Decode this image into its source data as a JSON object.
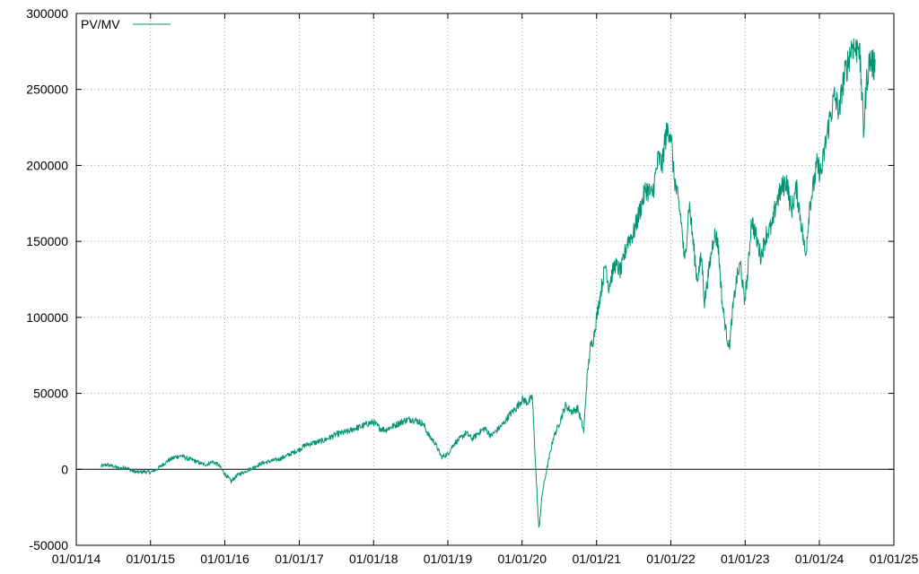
{
  "chart_data": {
    "type": "line",
    "title": "",
    "xlabel": "",
    "ylabel": "",
    "xlim": [
      "01/01/14",
      "01/01/25"
    ],
    "ylim": [
      -50000,
      300000
    ],
    "grid": true,
    "legend_position": "top-left",
    "zero_line": true,
    "x_ticks": [
      "01/01/14",
      "01/01/15",
      "01/01/16",
      "01/01/17",
      "01/01/18",
      "01/01/19",
      "01/01/20",
      "01/01/21",
      "01/01/22",
      "01/01/23",
      "01/01/24",
      "01/01/25"
    ],
    "y_ticks": [
      "-50000",
      "0",
      "50000",
      "100000",
      "150000",
      "200000",
      "250000",
      "300000"
    ],
    "line_color": "#009473",
    "series": [
      {
        "name": "PV/MV",
        "points": [
          [
            "2014-05-01",
            2000
          ],
          [
            "2014-06-01",
            3000
          ],
          [
            "2014-07-01",
            2000
          ],
          [
            "2014-08-01",
            500
          ],
          [
            "2014-09-01",
            1500
          ],
          [
            "2014-10-01",
            -1000
          ],
          [
            "2014-11-01",
            -2000
          ],
          [
            "2014-12-01",
            -1500
          ],
          [
            "2015-01-01",
            -2000
          ],
          [
            "2015-02-01",
            0
          ],
          [
            "2015-03-01",
            3000
          ],
          [
            "2015-04-01",
            6000
          ],
          [
            "2015-05-01",
            8000
          ],
          [
            "2015-06-01",
            9000
          ],
          [
            "2015-07-01",
            7000
          ],
          [
            "2015-08-01",
            6000
          ],
          [
            "2015-09-01",
            4000
          ],
          [
            "2015-10-01",
            3000
          ],
          [
            "2015-11-01",
            5000
          ],
          [
            "2015-12-01",
            3000
          ],
          [
            "2016-01-01",
            -3000
          ],
          [
            "2016-02-01",
            -8000
          ],
          [
            "2016-03-01",
            -4000
          ],
          [
            "2016-04-01",
            -2000
          ],
          [
            "2016-05-01",
            0
          ],
          [
            "2016-06-01",
            2000
          ],
          [
            "2016-07-01",
            4000
          ],
          [
            "2016-08-01",
            5000
          ],
          [
            "2016-09-01",
            6000
          ],
          [
            "2016-10-01",
            7000
          ],
          [
            "2016-11-01",
            9000
          ],
          [
            "2016-12-01",
            11000
          ],
          [
            "2017-01-01",
            13000
          ],
          [
            "2017-02-01",
            16000
          ],
          [
            "2017-03-01",
            17000
          ],
          [
            "2017-04-01",
            18000
          ],
          [
            "2017-05-01",
            19000
          ],
          [
            "2017-06-01",
            21000
          ],
          [
            "2017-07-01",
            23000
          ],
          [
            "2017-08-01",
            24000
          ],
          [
            "2017-09-01",
            25000
          ],
          [
            "2017-10-01",
            27000
          ],
          [
            "2017-11-01",
            28000
          ],
          [
            "2017-12-01",
            30000
          ],
          [
            "2018-01-01",
            31000
          ],
          [
            "2018-02-01",
            27000
          ],
          [
            "2018-03-01",
            26000
          ],
          [
            "2018-04-01",
            28000
          ],
          [
            "2018-05-01",
            30000
          ],
          [
            "2018-06-01",
            32000
          ],
          [
            "2018-07-01",
            33000
          ],
          [
            "2018-08-01",
            32000
          ],
          [
            "2018-09-01",
            30000
          ],
          [
            "2018-10-01",
            22000
          ],
          [
            "2018-11-01",
            17000
          ],
          [
            "2018-12-01",
            8000
          ],
          [
            "2019-01-01",
            10000
          ],
          [
            "2019-02-01",
            17000
          ],
          [
            "2019-03-01",
            20000
          ],
          [
            "2019-04-01",
            24000
          ],
          [
            "2019-05-01",
            20000
          ],
          [
            "2019-06-01",
            24000
          ],
          [
            "2019-07-01",
            27000
          ],
          [
            "2019-08-01",
            22000
          ],
          [
            "2019-09-01",
            26000
          ],
          [
            "2019-10-01",
            30000
          ],
          [
            "2019-11-01",
            36000
          ],
          [
            "2019-12-01",
            40000
          ],
          [
            "2020-01-01",
            46000
          ],
          [
            "2020-02-01",
            44000
          ],
          [
            "2020-02-20",
            48000
          ],
          [
            "2020-03-10",
            -5000
          ],
          [
            "2020-03-23",
            -40000
          ],
          [
            "2020-04-10",
            -15000
          ],
          [
            "2020-05-01",
            0
          ],
          [
            "2020-06-01",
            20000
          ],
          [
            "2020-07-01",
            30000
          ],
          [
            "2020-08-01",
            42000
          ],
          [
            "2020-09-01",
            38000
          ],
          [
            "2020-10-01",
            40000
          ],
          [
            "2020-10-30",
            25000
          ],
          [
            "2020-11-15",
            60000
          ],
          [
            "2020-12-01",
            80000
          ],
          [
            "2020-12-15",
            85000
          ],
          [
            "2021-01-01",
            100000
          ],
          [
            "2021-02-01",
            125000
          ],
          [
            "2021-02-15",
            135000
          ],
          [
            "2021-03-01",
            120000
          ],
          [
            "2021-04-01",
            135000
          ],
          [
            "2021-05-01",
            130000
          ],
          [
            "2021-06-01",
            150000
          ],
          [
            "2021-07-01",
            155000
          ],
          [
            "2021-08-01",
            170000
          ],
          [
            "2021-09-01",
            185000
          ],
          [
            "2021-10-01",
            180000
          ],
          [
            "2021-11-01",
            205000
          ],
          [
            "2021-11-20",
            200000
          ],
          [
            "2021-12-01",
            215000
          ],
          [
            "2021-12-20",
            225000
          ],
          [
            "2022-01-01",
            220000
          ],
          [
            "2022-01-15",
            195000
          ],
          [
            "2022-02-01",
            180000
          ],
          [
            "2022-02-20",
            165000
          ],
          [
            "2022-03-10",
            135000
          ],
          [
            "2022-04-01",
            175000
          ],
          [
            "2022-04-20",
            150000
          ],
          [
            "2022-05-10",
            125000
          ],
          [
            "2022-06-01",
            140000
          ],
          [
            "2022-06-15",
            110000
          ],
          [
            "2022-07-01",
            125000
          ],
          [
            "2022-08-01",
            155000
          ],
          [
            "2022-08-20",
            150000
          ],
          [
            "2022-09-10",
            110000
          ],
          [
            "2022-09-30",
            90000
          ],
          [
            "2022-10-15",
            80000
          ],
          [
            "2022-11-01",
            105000
          ],
          [
            "2022-11-20",
            125000
          ],
          [
            "2022-12-10",
            135000
          ],
          [
            "2022-12-28",
            110000
          ],
          [
            "2023-01-15",
            130000
          ],
          [
            "2023-02-01",
            165000
          ],
          [
            "2023-03-01",
            150000
          ],
          [
            "2023-03-20",
            140000
          ],
          [
            "2023-04-15",
            155000
          ],
          [
            "2023-05-15",
            160000
          ],
          [
            "2023-06-01",
            175000
          ],
          [
            "2023-07-01",
            185000
          ],
          [
            "2023-07-25",
            190000
          ],
          [
            "2023-08-15",
            170000
          ],
          [
            "2023-09-10",
            185000
          ],
          [
            "2023-10-01",
            165000
          ],
          [
            "2023-10-25",
            140000
          ],
          [
            "2023-11-15",
            175000
          ],
          [
            "2023-12-01",
            185000
          ],
          [
            "2023-12-20",
            200000
          ],
          [
            "2024-01-10",
            195000
          ],
          [
            "2024-02-01",
            215000
          ],
          [
            "2024-02-20",
            230000
          ],
          [
            "2024-03-15",
            245000
          ],
          [
            "2024-04-10",
            235000
          ],
          [
            "2024-04-20",
            250000
          ],
          [
            "2024-05-15",
            265000
          ],
          [
            "2024-06-10",
            280000
          ],
          [
            "2024-07-01",
            275000
          ],
          [
            "2024-07-10",
            285000
          ],
          [
            "2024-07-25",
            255000
          ],
          [
            "2024-08-05",
            222000
          ],
          [
            "2024-08-20",
            255000
          ],
          [
            "2024-09-05",
            270000
          ],
          [
            "2024-09-25",
            265000
          ],
          [
            "2024-10-01",
            270000
          ]
        ]
      }
    ]
  }
}
